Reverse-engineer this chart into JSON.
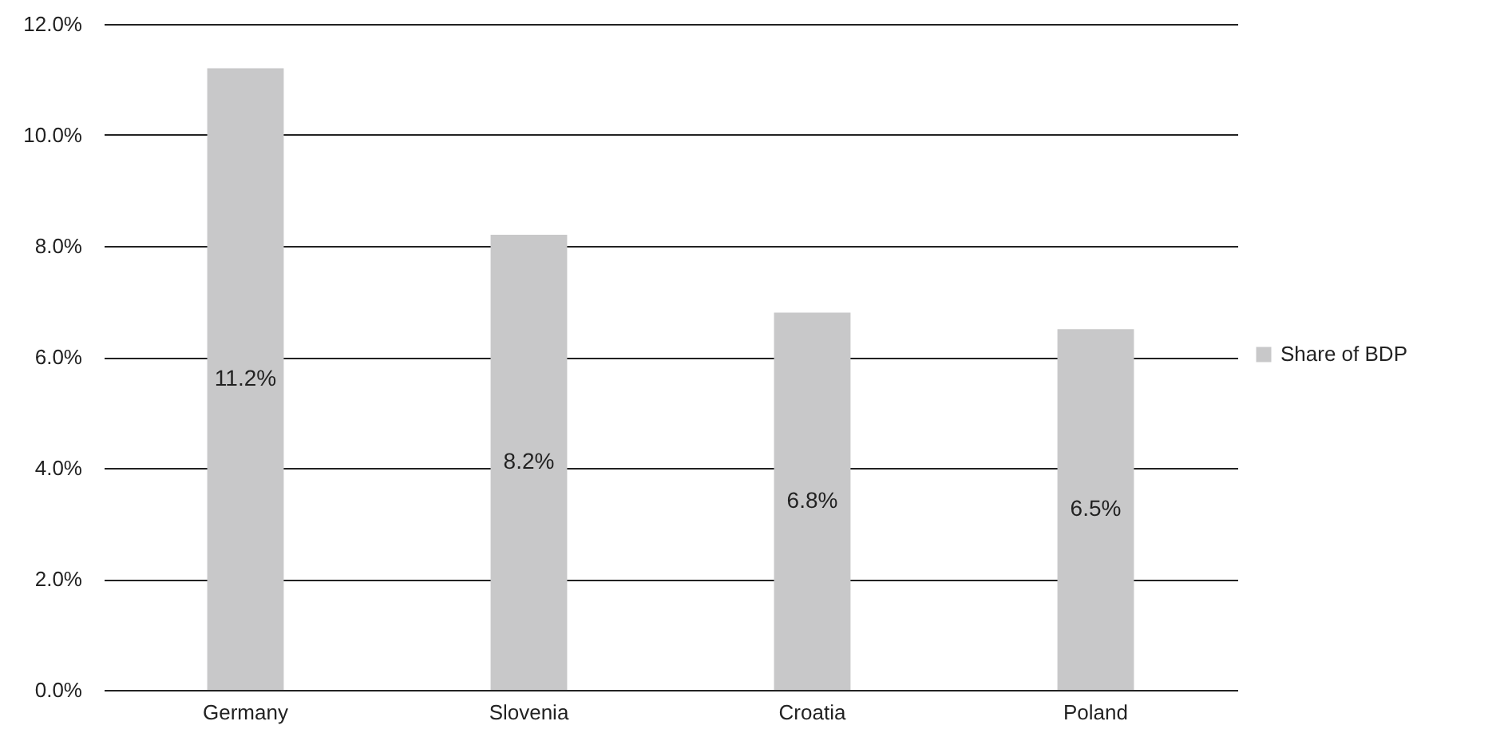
{
  "chart_data": {
    "type": "bar",
    "categories": [
      "Germany",
      "Slovenia",
      "Croatia",
      "Poland"
    ],
    "series": [
      {
        "name": "Share of BDP",
        "color": "#c8c8c9",
        "values": [
          11.2,
          8.2,
          6.8,
          6.5
        ],
        "value_labels": [
          "11.2%",
          "8.2%",
          "6.8%",
          "6.5%"
        ]
      }
    ],
    "ylim": [
      0,
      12
    ],
    "yticks": [
      {
        "value": 0,
        "label": "0.0%"
      },
      {
        "value": 2,
        "label": "2.0%"
      },
      {
        "value": 4,
        "label": "4.0%"
      },
      {
        "value": 6,
        "label": "6.0%"
      },
      {
        "value": 8,
        "label": "8.0%"
      },
      {
        "value": 10,
        "label": "10.0%"
      },
      {
        "value": 12,
        "label": "12.0%"
      }
    ],
    "grid": "y",
    "legend": "right"
  }
}
